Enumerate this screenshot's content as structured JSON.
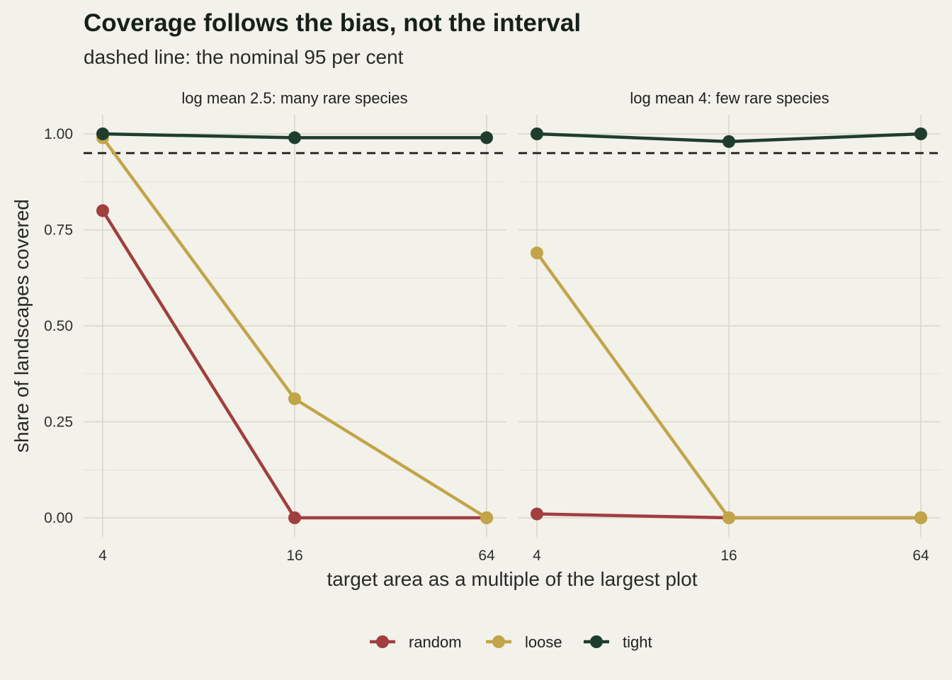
{
  "chart_data": {
    "type": "line",
    "title": "Coverage follows the bias, not the interval",
    "subtitle": "dashed line: the nominal 95 per cent",
    "xlabel": "target area as a multiple of the largest plot",
    "ylabel": "share of landscapes covered",
    "x": [
      4,
      16,
      64
    ],
    "x_ticks": [
      "4",
      "16",
      "64"
    ],
    "x_scale": "log",
    "ylim": [
      0,
      1
    ],
    "y_ticks": [
      "0.00",
      "0.25",
      "0.50",
      "0.75",
      "1.00"
    ],
    "reference_line": 0.95,
    "grid": true,
    "legend_position": "bottom",
    "colors": {
      "random": "#a23e3e",
      "loose": "#c2a549",
      "tight": "#1f3d2c",
      "grid": "#d9d8c8",
      "background": "#f2f1ea"
    },
    "legend": [
      "random",
      "loose",
      "tight"
    ],
    "panels": [
      {
        "label": "log mean 2.5: many rare species",
        "series": [
          {
            "name": "random",
            "values": [
              0.8,
              0.0,
              0.0
            ]
          },
          {
            "name": "loose",
            "values": [
              0.99,
              0.31,
              0.0
            ]
          },
          {
            "name": "tight",
            "values": [
              1.0,
              0.99,
              0.99
            ]
          }
        ]
      },
      {
        "label": "log mean 4: few rare species",
        "series": [
          {
            "name": "random",
            "values": [
              0.01,
              0.0,
              0.0
            ]
          },
          {
            "name": "loose",
            "values": [
              0.69,
              0.0,
              0.0
            ]
          },
          {
            "name": "tight",
            "values": [
              1.0,
              0.98,
              1.0
            ]
          }
        ]
      }
    ]
  }
}
